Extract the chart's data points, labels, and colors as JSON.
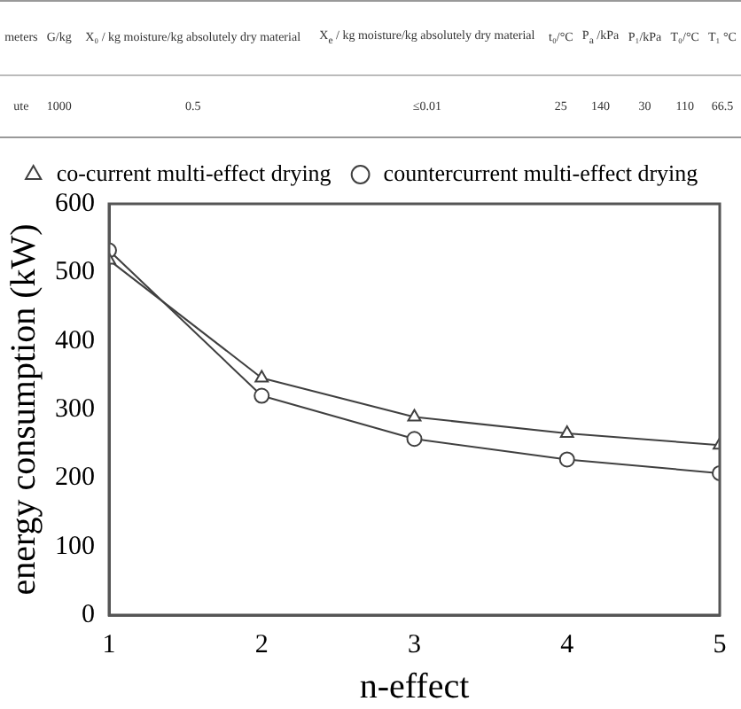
{
  "chart_data": {
    "type": "line",
    "annotations": [
      "meters",
      "G/kg",
      "X₀ / kg moisture/kg absolutely dry material",
      "X$_{e}$ / kg moisture/kg absolutely dry material",
      "t₀/°C",
      "P$_{a}$ /kPa",
      "P₁/kPa",
      "T₀/°C",
      "T₁ °C",
      "ute",
      "1000",
      "0.5",
      "≤0.01",
      "25",
      "140",
      "30",
      "110",
      "66.5"
    ],
    "xlabel": "n-effect",
    "ylabel": "energy consumption (kW)",
    "x": [
      1,
      2,
      3,
      4,
      5
    ],
    "series": [
      {
        "name": "co-current multi-effect drying",
        "color": "#404040",
        "marker": "triangle",
        "values": [
          518,
          346,
          289,
          265,
          248
        ]
      },
      {
        "name": "countercurrent multi-effect drying",
        "color": "#404040",
        "marker": "circle",
        "values": [
          532,
          320,
          257,
          227,
          207
        ]
      }
    ],
    "xlim": [
      1,
      5
    ],
    "xticks": [
      1,
      2,
      3,
      4,
      5
    ],
    "ylim": [
      0,
      600
    ],
    "yticks": [
      0,
      100,
      200,
      300,
      400,
      500,
      600
    ],
    "grid": false,
    "legend": "top",
    "line_style": "solid"
  }
}
